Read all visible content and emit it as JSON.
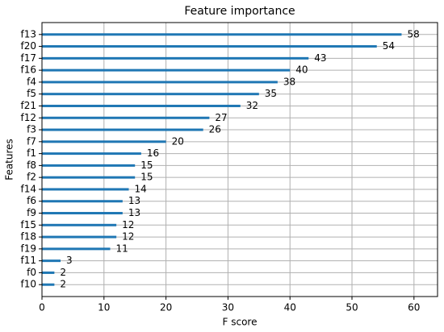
{
  "chart_data": {
    "type": "barh",
    "title": "Feature importance",
    "x_label": "F score",
    "y_label": "Features",
    "categories": [
      "f13",
      "f20",
      "f17",
      "f16",
      "f4",
      "f5",
      "f21",
      "f12",
      "f3",
      "f7",
      "f1",
      "f8",
      "f2",
      "f14",
      "f6",
      "f9",
      "f15",
      "f18",
      "f19",
      "f11",
      "f0",
      "f10"
    ],
    "values": [
      58,
      54,
      43,
      40,
      38,
      35,
      32,
      27,
      26,
      20,
      16,
      15,
      15,
      14,
      13,
      13,
      12,
      12,
      11,
      3,
      2,
      2
    ],
    "color": "#1f77b4",
    "xlim": [
      0,
      63.8
    ],
    "xticks": [
      0,
      10,
      20,
      30,
      40,
      50,
      60
    ],
    "grid": true
  }
}
